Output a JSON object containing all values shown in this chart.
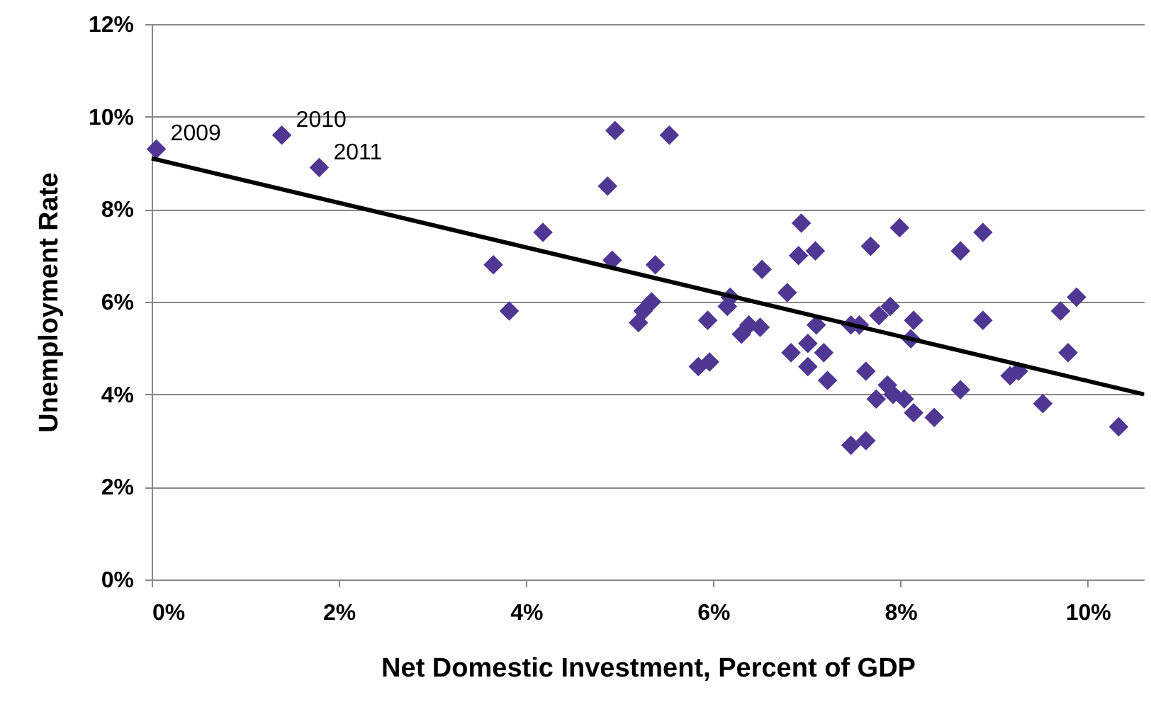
{
  "chart_data": {
    "type": "scatter",
    "xlabel": "Net Domestic Investment, Percent of GDP",
    "ylabel": "Unemployment Rate",
    "xlim": [
      0,
      10.6
    ],
    "ylim": [
      0,
      12
    ],
    "xticks": [
      {
        "value": 0,
        "label": "0%"
      },
      {
        "value": 2,
        "label": "2%"
      },
      {
        "value": 4,
        "label": "4%"
      },
      {
        "value": 6,
        "label": "6%"
      },
      {
        "value": 8,
        "label": "8%"
      },
      {
        "value": 10,
        "label": "10%"
      }
    ],
    "yticks": [
      {
        "value": 0,
        "label": "0%"
      },
      {
        "value": 2,
        "label": "2%"
      },
      {
        "value": 4,
        "label": "4%"
      },
      {
        "value": 6,
        "label": "6%"
      },
      {
        "value": 8,
        "label": "8%"
      },
      {
        "value": 10,
        "label": "10%"
      },
      {
        "value": 12,
        "label": "12%"
      }
    ],
    "grid": "y",
    "series": [
      {
        "marker": "diamond",
        "color": "#4f3793",
        "x": [
          0.05,
          1.39,
          1.79,
          3.65,
          3.82,
          4.18,
          4.87,
          4.95,
          4.92,
          5.53,
          5.38,
          5.34,
          5.25,
          5.2,
          5.94,
          5.84,
          5.96,
          6.18,
          6.15,
          6.94,
          6.91,
          7.09,
          6.52,
          6.79,
          6.3,
          6.38,
          6.5,
          6.83,
          7.01,
          7.01,
          7.18,
          7.1,
          7.22,
          7.68,
          7.99,
          7.47,
          7.56,
          7.63,
          7.77,
          7.89,
          8.14,
          8.11,
          7.47,
          7.63,
          7.74,
          7.86,
          7.92,
          8.04,
          8.14,
          8.36,
          8.64,
          8.88,
          8.88,
          8.64,
          9.17,
          9.26,
          9.52,
          9.71,
          9.88,
          9.79,
          10.33
        ],
        "values": [
          9.3,
          9.6,
          8.9,
          6.8,
          5.8,
          7.5,
          8.5,
          9.7,
          6.9,
          9.6,
          6.8,
          6.0,
          5.8,
          5.55,
          5.6,
          4.6,
          4.7,
          6.1,
          5.9,
          7.7,
          7.0,
          7.1,
          6.7,
          6.2,
          5.3,
          5.5,
          5.45,
          4.9,
          5.1,
          4.6,
          4.9,
          5.5,
          4.3,
          7.2,
          7.6,
          5.5,
          5.5,
          4.5,
          5.7,
          5.9,
          5.6,
          5.2,
          2.9,
          3.0,
          3.9,
          4.2,
          4.0,
          3.9,
          3.6,
          3.5,
          7.1,
          7.5,
          5.6,
          4.1,
          4.4,
          4.5,
          3.8,
          5.8,
          6.1,
          4.9,
          3.3
        ]
      },
      {
        "type": "line",
        "color": "#000000",
        "x": [
          0,
          10.6
        ],
        "values": [
          9.1,
          4.0
        ]
      }
    ],
    "annotations": [
      {
        "text": "2009",
        "x": 0.05,
        "y": 9.3
      },
      {
        "text": "2010",
        "x": 1.39,
        "y": 9.6
      },
      {
        "text": "2011",
        "x": 1.79,
        "y": 8.9
      }
    ]
  }
}
